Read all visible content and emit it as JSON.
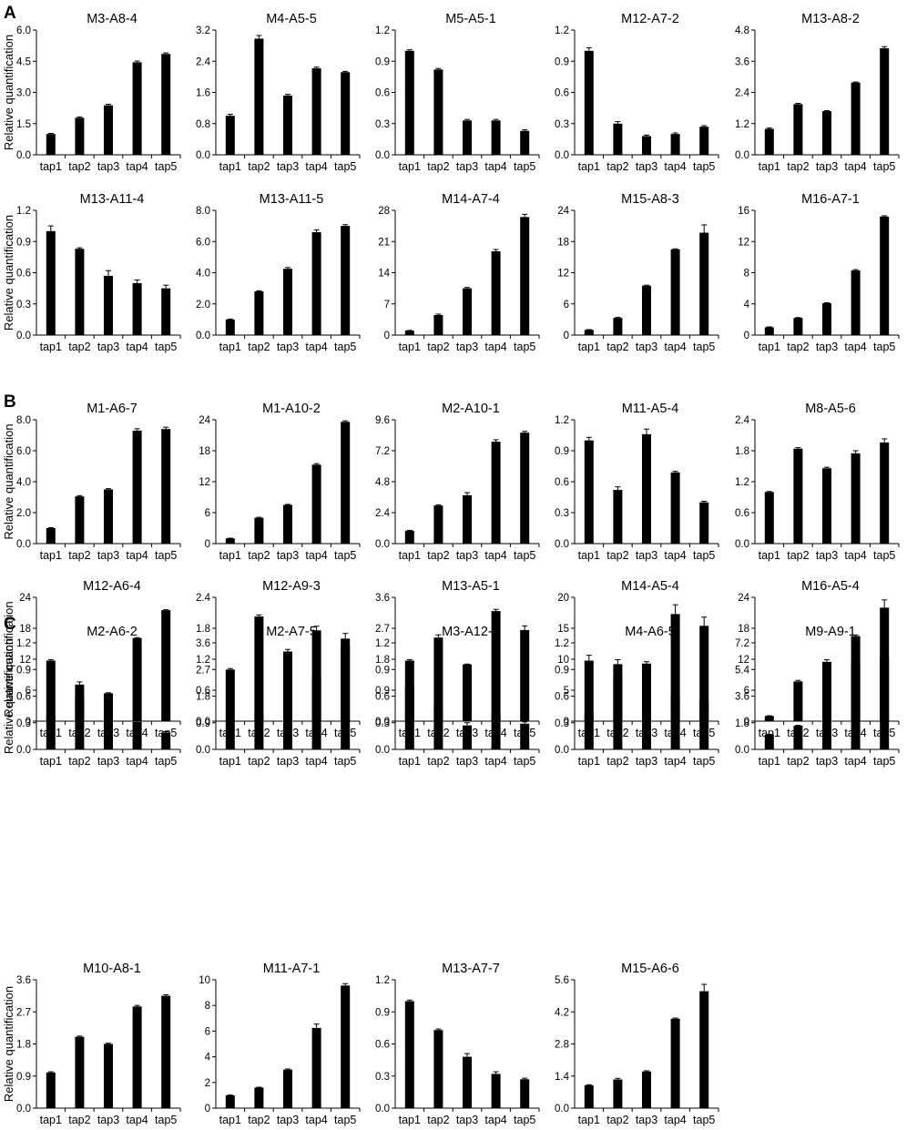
{
  "figure": {
    "panel_labels": [
      "A",
      "B",
      "C"
    ],
    "ylabel": "Relative quantification",
    "bar_color": "#000000"
  },
  "chart_data": [
    {
      "panel": "A",
      "type": "bar",
      "title": "M3-A8-4",
      "categories": [
        "tap1",
        "tap2",
        "tap3",
        "tap4",
        "tap5"
      ],
      "values": [
        1.0,
        1.78,
        2.38,
        4.45,
        4.85
      ],
      "errors": [
        0.03,
        0.04,
        0.05,
        0.06,
        0.05
      ],
      "ylim": [
        0,
        6.0
      ],
      "yticks": [
        "0.0",
        "1.5",
        "3.0",
        "4.5",
        "6.0"
      ]
    },
    {
      "panel": "A",
      "type": "bar",
      "title": "M4-A5-5",
      "categories": [
        "tap1",
        "tap2",
        "tap3",
        "tap4",
        "tap5"
      ],
      "values": [
        1.0,
        2.98,
        1.52,
        2.22,
        2.12
      ],
      "errors": [
        0.04,
        0.08,
        0.03,
        0.03,
        0.02
      ],
      "ylim": [
        0,
        3.2
      ],
      "yticks": [
        "0.0",
        "0.8",
        "1.6",
        "2.4",
        "3.2"
      ]
    },
    {
      "panel": "A",
      "type": "bar",
      "title": "M5-A5-1",
      "categories": [
        "tap1",
        "tap2",
        "tap3",
        "tap4",
        "tap5"
      ],
      "values": [
        1.0,
        0.82,
        0.33,
        0.33,
        0.23
      ],
      "errors": [
        0.01,
        0.01,
        0.01,
        0.01,
        0.01
      ],
      "ylim": [
        0,
        1.2
      ],
      "yticks": [
        "0.0",
        "0.3",
        "0.6",
        "0.9",
        "1.2"
      ]
    },
    {
      "panel": "A",
      "type": "bar",
      "title": "M12-A7-2",
      "categories": [
        "tap1",
        "tap2",
        "tap3",
        "tap4",
        "tap5"
      ],
      "values": [
        1.0,
        0.3,
        0.18,
        0.2,
        0.27
      ],
      "errors": [
        0.03,
        0.02,
        0.01,
        0.01,
        0.01
      ],
      "ylim": [
        0,
        1.2
      ],
      "yticks": [
        "0.0",
        "0.3",
        "0.6",
        "0.9",
        "1.2"
      ]
    },
    {
      "panel": "A",
      "type": "bar",
      "title": "M13-A8-2",
      "categories": [
        "tap1",
        "tap2",
        "tap3",
        "tap4",
        "tap5"
      ],
      "values": [
        1.0,
        1.95,
        1.68,
        2.78,
        4.1
      ],
      "errors": [
        0.03,
        0.03,
        0.02,
        0.02,
        0.06
      ],
      "ylim": [
        0,
        4.8
      ],
      "yticks": [
        "0.0",
        "1.2",
        "2.4",
        "3.6",
        "4.8"
      ]
    },
    {
      "panel": "A",
      "type": "bar",
      "title": "M13-A11-4",
      "categories": [
        "tap1",
        "tap2",
        "tap3",
        "tap4",
        "tap5"
      ],
      "values": [
        1.0,
        0.83,
        0.57,
        0.5,
        0.45
      ],
      "errors": [
        0.05,
        0.01,
        0.05,
        0.03,
        0.03
      ],
      "ylim": [
        0,
        1.2
      ],
      "yticks": [
        "0.0",
        "0.3",
        "0.6",
        "0.9",
        "1.2"
      ]
    },
    {
      "panel": "A",
      "type": "bar",
      "title": "M13-A11-5",
      "categories": [
        "tap1",
        "tap2",
        "tap3",
        "tap4",
        "tap5"
      ],
      "values": [
        1.0,
        2.8,
        4.25,
        6.6,
        7.0
      ],
      "errors": [
        0.03,
        0.04,
        0.08,
        0.15,
        0.08
      ],
      "ylim": [
        0,
        8.0
      ],
      "yticks": [
        "0.0",
        "2.0",
        "4.0",
        "6.0",
        "8.0"
      ]
    },
    {
      "panel": "A",
      "type": "bar",
      "title": "M14-A7-4",
      "categories": [
        "tap1",
        "tap2",
        "tap3",
        "tap4",
        "tap5"
      ],
      "values": [
        1.0,
        4.5,
        10.5,
        18.8,
        26.5
      ],
      "errors": [
        0.05,
        0.2,
        0.2,
        0.4,
        0.6
      ],
      "ylim": [
        0,
        28
      ],
      "yticks": [
        "0",
        "7",
        "14",
        "21",
        "28"
      ]
    },
    {
      "panel": "A",
      "type": "bar",
      "title": "M15-A8-3",
      "categories": [
        "tap1",
        "tap2",
        "tap3",
        "tap4",
        "tap5"
      ],
      "values": [
        1.0,
        3.3,
        9.5,
        16.5,
        19.7
      ],
      "errors": [
        0.05,
        0.1,
        0.1,
        0.1,
        1.5
      ],
      "ylim": [
        0,
        24
      ],
      "yticks": [
        "0",
        "6",
        "12",
        "18",
        "24"
      ]
    },
    {
      "panel": "A",
      "type": "bar",
      "title": "M16-A7-1",
      "categories": [
        "tap1",
        "tap2",
        "tap3",
        "tap4",
        "tap5"
      ],
      "values": [
        1.0,
        2.2,
        4.1,
        8.3,
        15.2
      ],
      "errors": [
        0.05,
        0.05,
        0.05,
        0.1,
        0.1
      ],
      "ylim": [
        0,
        16
      ],
      "yticks": [
        "0",
        "4",
        "8",
        "12",
        "16"
      ]
    },
    {
      "panel": "B",
      "type": "bar",
      "title": "M1-A6-7",
      "categories": [
        "tap1",
        "tap2",
        "tap3",
        "tap4",
        "tap5"
      ],
      "values": [
        1.0,
        3.05,
        3.5,
        7.3,
        7.4
      ],
      "errors": [
        0.03,
        0.05,
        0.05,
        0.12,
        0.12
      ],
      "ylim": [
        0,
        8.0
      ],
      "yticks": [
        "0.0",
        "2.0",
        "4.0",
        "6.0",
        "8.0"
      ]
    },
    {
      "panel": "B",
      "type": "bar",
      "title": "M1-A10-2",
      "categories": [
        "tap1",
        "tap2",
        "tap3",
        "tap4",
        "tap5"
      ],
      "values": [
        1.0,
        5.0,
        7.5,
        15.3,
        23.6
      ],
      "errors": [
        0.05,
        0.1,
        0.1,
        0.2,
        0.2
      ],
      "ylim": [
        0,
        24
      ],
      "yticks": [
        "0",
        "6",
        "12",
        "18",
        "24"
      ]
    },
    {
      "panel": "B",
      "type": "bar",
      "title": "M2-A10-1",
      "categories": [
        "tap1",
        "tap2",
        "tap3",
        "tap4",
        "tap5"
      ],
      "values": [
        1.0,
        2.95,
        3.75,
        7.9,
        8.6
      ],
      "errors": [
        0.03,
        0.05,
        0.2,
        0.15,
        0.1
      ],
      "ylim": [
        0,
        9.6
      ],
      "yticks": [
        "0.0",
        "2.4",
        "4.8",
        "7.2",
        "9.6"
      ]
    },
    {
      "panel": "B",
      "type": "bar",
      "title": "M11-A5-4",
      "categories": [
        "tap1",
        "tap2",
        "tap3",
        "tap4",
        "tap5"
      ],
      "values": [
        1.0,
        0.52,
        1.06,
        0.69,
        0.4
      ],
      "errors": [
        0.03,
        0.03,
        0.05,
        0.01,
        0.01
      ],
      "ylim": [
        0,
        1.2
      ],
      "yticks": [
        "0.0",
        "0.3",
        "0.6",
        "0.9",
        "1.2"
      ]
    },
    {
      "panel": "B",
      "type": "bar",
      "title": "M8-A5-6",
      "categories": [
        "tap1",
        "tap2",
        "tap3",
        "tap4",
        "tap5"
      ],
      "values": [
        1.0,
        1.84,
        1.46,
        1.75,
        1.96
      ],
      "errors": [
        0.01,
        0.02,
        0.02,
        0.05,
        0.07
      ],
      "ylim": [
        0,
        2.4
      ],
      "yticks": [
        "0.0",
        "0.6",
        "1.2",
        "1.8",
        "2.4"
      ]
    },
    {
      "panel": "B",
      "type": "bar",
      "title": "M12-A6-4",
      "categories": [
        "tap1",
        "tap2",
        "tap3",
        "tap4",
        "tap5"
      ],
      "values": [
        1.0,
        4.6,
        5.4,
        16.1,
        21.5
      ],
      "errors": [
        0.05,
        0.2,
        0.1,
        0.1,
        0.1
      ],
      "ylim": [
        0,
        24
      ],
      "yticks": [
        "0",
        "6",
        "12",
        "18",
        "24"
      ]
    },
    {
      "panel": "B",
      "type": "bar",
      "title": "M12-A9-3",
      "categories": [
        "tap1",
        "tap2",
        "tap3",
        "tap4",
        "tap5"
      ],
      "values": [
        1.0,
        2.03,
        1.35,
        1.76,
        1.6
      ],
      "errors": [
        0.02,
        0.03,
        0.04,
        0.08,
        0.1
      ],
      "ylim": [
        0,
        2.4
      ],
      "yticks": [
        "0.0",
        "0.6",
        "1.2",
        "1.8",
        "2.4"
      ]
    },
    {
      "panel": "B",
      "type": "bar",
      "title": "M13-A5-1",
      "categories": [
        "tap1",
        "tap2",
        "tap3",
        "tap4",
        "tap5"
      ],
      "values": [
        1.0,
        2.43,
        1.65,
        3.2,
        2.65
      ],
      "errors": [
        0.02,
        0.08,
        0.01,
        0.05,
        0.12
      ],
      "ylim": [
        0,
        3.6
      ],
      "yticks": [
        "0.0",
        "0.9",
        "1.8",
        "2.7",
        "3.6"
      ]
    },
    {
      "panel": "B",
      "type": "bar",
      "title": "M14-A5-4",
      "categories": [
        "tap1",
        "tap2",
        "tap3",
        "tap4",
        "tap5"
      ],
      "values": [
        1.0,
        7.2,
        9.3,
        17.3,
        15.4
      ],
      "errors": [
        0.05,
        0.4,
        0.3,
        1.5,
        1.4
      ],
      "ylim": [
        0,
        20
      ],
      "yticks": [
        "0",
        "5",
        "10",
        "15",
        "20"
      ]
    },
    {
      "panel": "B",
      "type": "bar",
      "title": "M16-A5-4",
      "categories": [
        "tap1",
        "tap2",
        "tap3",
        "tap4",
        "tap5"
      ],
      "values": [
        1.0,
        7.7,
        11.5,
        16.5,
        22.0
      ],
      "errors": [
        0.05,
        0.2,
        0.4,
        0.2,
        1.5
      ],
      "ylim": [
        0,
        24
      ],
      "yticks": [
        "0",
        "6",
        "12",
        "18",
        "24"
      ]
    },
    {
      "panel": "C",
      "type": "bar",
      "title": "M2-A6-2",
      "categories": [
        "tap1",
        "tap2",
        "tap3",
        "tap4",
        "tap5"
      ],
      "values": [
        1.0,
        0.73,
        0.44,
        0.31,
        0.19
      ],
      "errors": [
        0.01,
        0.03,
        0.05,
        0.02,
        0.01
      ],
      "ylim": [
        0,
        1.2
      ],
      "yticks": [
        "0.0",
        "0.3",
        "0.6",
        "0.9",
        "1.2"
      ]
    },
    {
      "panel": "C",
      "type": "bar",
      "title": "M2-A7-5",
      "categories": [
        "tap1",
        "tap2",
        "tap3",
        "tap4",
        "tap5"
      ],
      "values": [
        1.0,
        1.2,
        1.35,
        2.45,
        3.5
      ],
      "errors": [
        0.02,
        0.02,
        0.03,
        0.03,
        0.05
      ],
      "ylim": [
        0,
        3.6
      ],
      "yticks": [
        "0.0",
        "0.9",
        "1.8",
        "2.7",
        "3.6"
      ]
    },
    {
      "panel": "C",
      "type": "bar",
      "title": "M3-A12-1",
      "categories": [
        "tap1",
        "tap2",
        "tap3",
        "tap4",
        "tap5"
      ],
      "values": [
        1.0,
        0.47,
        0.27,
        0.38,
        0.29
      ],
      "errors": [
        0.01,
        0.03,
        0.03,
        0.02,
        0.02
      ],
      "ylim": [
        0,
        1.2
      ],
      "yticks": [
        "0.0",
        "0.3",
        "0.6",
        "0.9",
        "1.2"
      ]
    },
    {
      "panel": "C",
      "type": "bar",
      "title": "M4-A6-5",
      "categories": [
        "tap1",
        "tap2",
        "tap3",
        "tap4",
        "tap5"
      ],
      "values": [
        1.0,
        0.96,
        0.75,
        0.6,
        0.55
      ],
      "errors": [
        0.06,
        0.05,
        0.08,
        0.03,
        0.03
      ],
      "ylim": [
        0,
        1.2
      ],
      "yticks": [
        "0.0",
        "0.3",
        "0.6",
        "0.9",
        "1.2"
      ]
    },
    {
      "panel": "C",
      "type": "bar",
      "title": "M9-A9-1",
      "categories": [
        "tap1",
        "tap2",
        "tap3",
        "tap4",
        "tap5"
      ],
      "values": [
        1.0,
        1.6,
        2.75,
        5.9,
        6.2
      ],
      "errors": [
        0.02,
        0.03,
        0.02,
        0.05,
        0.25
      ],
      "ylim": [
        0,
        7.2
      ],
      "yticks": [
        "0.0",
        "1.8",
        "3.6",
        "5.4",
        "7.2"
      ]
    },
    {
      "panel": "C",
      "type": "bar",
      "title": "M10-A8-1",
      "categories": [
        "tap1",
        "tap2",
        "tap3",
        "tap4",
        "tap5"
      ],
      "values": [
        1.0,
        2.0,
        1.8,
        2.85,
        3.15
      ],
      "errors": [
        0.02,
        0.02,
        0.02,
        0.03,
        0.03
      ],
      "ylim": [
        0,
        3.6
      ],
      "yticks": [
        "0.0",
        "0.9",
        "1.8",
        "2.7",
        "3.6"
      ]
    },
    {
      "panel": "C",
      "type": "bar",
      "title": "M11-A7-1",
      "categories": [
        "tap1",
        "tap2",
        "tap3",
        "tap4",
        "tap5"
      ],
      "values": [
        1.0,
        1.6,
        3.0,
        6.25,
        9.55
      ],
      "errors": [
        0.02,
        0.03,
        0.05,
        0.3,
        0.15
      ],
      "ylim": [
        0,
        10
      ],
      "yticks": [
        "0",
        "2",
        "4",
        "6",
        "8",
        "10"
      ]
    },
    {
      "panel": "C",
      "type": "bar",
      "title": "M13-A7-7",
      "categories": [
        "tap1",
        "tap2",
        "tap3",
        "tap4",
        "tap5"
      ],
      "values": [
        1.0,
        0.73,
        0.48,
        0.32,
        0.27
      ],
      "errors": [
        0.01,
        0.01,
        0.03,
        0.02,
        0.01
      ],
      "ylim": [
        0,
        1.2
      ],
      "yticks": [
        "0.0",
        "0.3",
        "0.6",
        "0.9",
        "1.2"
      ]
    },
    {
      "panel": "C",
      "type": "bar",
      "title": "M15-A6-6",
      "categories": [
        "tap1",
        "tap2",
        "tap3",
        "tap4",
        "tap5"
      ],
      "values": [
        1.0,
        1.25,
        1.6,
        3.9,
        5.1
      ],
      "errors": [
        0.02,
        0.05,
        0.03,
        0.03,
        0.3
      ],
      "ylim": [
        0,
        5.6
      ],
      "yticks": [
        "0.0",
        "1.4",
        "2.8",
        "4.2",
        "5.6"
      ]
    }
  ]
}
